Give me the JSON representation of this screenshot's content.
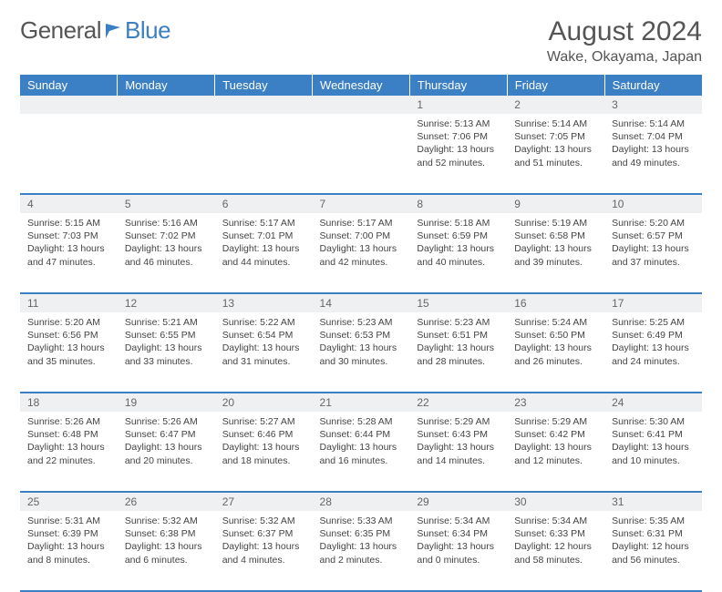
{
  "logo": {
    "general": "General",
    "blue": "Blue"
  },
  "header": {
    "month_title": "August 2024",
    "location": "Wake, Okayama, Japan"
  },
  "colors": {
    "brand_blue": "#3b7fc4",
    "daynum_bg": "#eef0f2",
    "text": "#444",
    "header_text": "#555"
  },
  "weekdays": [
    "Sunday",
    "Monday",
    "Tuesday",
    "Wednesday",
    "Thursday",
    "Friday",
    "Saturday"
  ],
  "weeks": [
    [
      null,
      null,
      null,
      null,
      {
        "n": "1",
        "sr": "5:13 AM",
        "ss": "7:06 PM",
        "dl": "13 hours and 52 minutes."
      },
      {
        "n": "2",
        "sr": "5:14 AM",
        "ss": "7:05 PM",
        "dl": "13 hours and 51 minutes."
      },
      {
        "n": "3",
        "sr": "5:14 AM",
        "ss": "7:04 PM",
        "dl": "13 hours and 49 minutes."
      }
    ],
    [
      {
        "n": "4",
        "sr": "5:15 AM",
        "ss": "7:03 PM",
        "dl": "13 hours and 47 minutes."
      },
      {
        "n": "5",
        "sr": "5:16 AM",
        "ss": "7:02 PM",
        "dl": "13 hours and 46 minutes."
      },
      {
        "n": "6",
        "sr": "5:17 AM",
        "ss": "7:01 PM",
        "dl": "13 hours and 44 minutes."
      },
      {
        "n": "7",
        "sr": "5:17 AM",
        "ss": "7:00 PM",
        "dl": "13 hours and 42 minutes."
      },
      {
        "n": "8",
        "sr": "5:18 AM",
        "ss": "6:59 PM",
        "dl": "13 hours and 40 minutes."
      },
      {
        "n": "9",
        "sr": "5:19 AM",
        "ss": "6:58 PM",
        "dl": "13 hours and 39 minutes."
      },
      {
        "n": "10",
        "sr": "5:20 AM",
        "ss": "6:57 PM",
        "dl": "13 hours and 37 minutes."
      }
    ],
    [
      {
        "n": "11",
        "sr": "5:20 AM",
        "ss": "6:56 PM",
        "dl": "13 hours and 35 minutes."
      },
      {
        "n": "12",
        "sr": "5:21 AM",
        "ss": "6:55 PM",
        "dl": "13 hours and 33 minutes."
      },
      {
        "n": "13",
        "sr": "5:22 AM",
        "ss": "6:54 PM",
        "dl": "13 hours and 31 minutes."
      },
      {
        "n": "14",
        "sr": "5:23 AM",
        "ss": "6:53 PM",
        "dl": "13 hours and 30 minutes."
      },
      {
        "n": "15",
        "sr": "5:23 AM",
        "ss": "6:51 PM",
        "dl": "13 hours and 28 minutes."
      },
      {
        "n": "16",
        "sr": "5:24 AM",
        "ss": "6:50 PM",
        "dl": "13 hours and 26 minutes."
      },
      {
        "n": "17",
        "sr": "5:25 AM",
        "ss": "6:49 PM",
        "dl": "13 hours and 24 minutes."
      }
    ],
    [
      {
        "n": "18",
        "sr": "5:26 AM",
        "ss": "6:48 PM",
        "dl": "13 hours and 22 minutes."
      },
      {
        "n": "19",
        "sr": "5:26 AM",
        "ss": "6:47 PM",
        "dl": "13 hours and 20 minutes."
      },
      {
        "n": "20",
        "sr": "5:27 AM",
        "ss": "6:46 PM",
        "dl": "13 hours and 18 minutes."
      },
      {
        "n": "21",
        "sr": "5:28 AM",
        "ss": "6:44 PM",
        "dl": "13 hours and 16 minutes."
      },
      {
        "n": "22",
        "sr": "5:29 AM",
        "ss": "6:43 PM",
        "dl": "13 hours and 14 minutes."
      },
      {
        "n": "23",
        "sr": "5:29 AM",
        "ss": "6:42 PM",
        "dl": "13 hours and 12 minutes."
      },
      {
        "n": "24",
        "sr": "5:30 AM",
        "ss": "6:41 PM",
        "dl": "13 hours and 10 minutes."
      }
    ],
    [
      {
        "n": "25",
        "sr": "5:31 AM",
        "ss": "6:39 PM",
        "dl": "13 hours and 8 minutes."
      },
      {
        "n": "26",
        "sr": "5:32 AM",
        "ss": "6:38 PM",
        "dl": "13 hours and 6 minutes."
      },
      {
        "n": "27",
        "sr": "5:32 AM",
        "ss": "6:37 PM",
        "dl": "13 hours and 4 minutes."
      },
      {
        "n": "28",
        "sr": "5:33 AM",
        "ss": "6:35 PM",
        "dl": "13 hours and 2 minutes."
      },
      {
        "n": "29",
        "sr": "5:34 AM",
        "ss": "6:34 PM",
        "dl": "13 hours and 0 minutes."
      },
      {
        "n": "30",
        "sr": "5:34 AM",
        "ss": "6:33 PM",
        "dl": "12 hours and 58 minutes."
      },
      {
        "n": "31",
        "sr": "5:35 AM",
        "ss": "6:31 PM",
        "dl": "12 hours and 56 minutes."
      }
    ]
  ],
  "labels": {
    "sunrise": "Sunrise: ",
    "sunset": "Sunset: ",
    "daylight": "Daylight: "
  }
}
